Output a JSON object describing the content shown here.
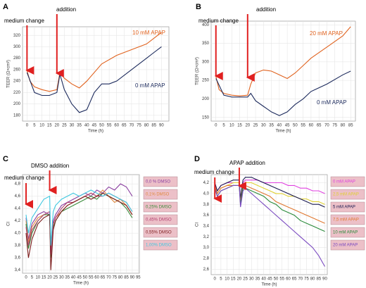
{
  "chart_data": [
    {
      "type": "line",
      "panel": "A",
      "annotations": [
        "medium change",
        "addition"
      ],
      "x_label": "Time (h)",
      "y_label": "TEER (Ω×cm²)",
      "xlim": [
        -3,
        95
      ],
      "ylim": [
        170,
        335
      ],
      "xticks": [
        0,
        5,
        10,
        15,
        20,
        25,
        30,
        35,
        40,
        45,
        50,
        55,
        60,
        65,
        70,
        75,
        80,
        85,
        90
      ],
      "yticks": [
        180,
        200,
        220,
        240,
        260,
        280,
        300,
        320
      ],
      "grid": true,
      "legend": "inline",
      "series": [
        {
          "name": "10 mM APAP",
          "color": "#e0621e",
          "x": [
            0,
            2,
            5,
            10,
            15,
            20,
            22,
            25,
            30,
            35,
            40,
            50,
            60,
            70,
            80,
            90
          ],
          "values": [
            258,
            240,
            230,
            225,
            222,
            225,
            255,
            245,
            235,
            228,
            240,
            270,
            285,
            295,
            305,
            325
          ]
        },
        {
          "name": "0 mM APAP",
          "color": "#1c2a5c",
          "x": [
            0,
            5,
            10,
            15,
            20,
            22,
            25,
            30,
            35,
            40,
            45,
            50,
            55,
            60,
            70,
            80,
            85,
            90
          ],
          "values": [
            255,
            220,
            215,
            215,
            220,
            252,
            225,
            200,
            185,
            190,
            220,
            235,
            235,
            240,
            260,
            280,
            290,
            300
          ]
        }
      ]
    },
    {
      "type": "line",
      "panel": "B",
      "annotations": [
        "medium change",
        "addition"
      ],
      "x_label": "Time (h)",
      "y_label": "TEER (Ω×cm²)",
      "xlim": [
        -3,
        88
      ],
      "ylim": [
        140,
        410
      ],
      "xticks": [
        0,
        5,
        10,
        15,
        20,
        25,
        30,
        35,
        40,
        45,
        50,
        55,
        60,
        65,
        70,
        75,
        80,
        85
      ],
      "yticks": [
        150,
        200,
        250,
        300,
        350,
        400
      ],
      "grid": true,
      "legend": "inline",
      "series": [
        {
          "name": "20 mM APAP",
          "color": "#e0621e",
          "x": [
            0,
            2,
            5,
            10,
            15,
            20,
            22,
            25,
            30,
            35,
            40,
            45,
            50,
            55,
            60,
            70,
            80,
            85
          ],
          "values": [
            260,
            225,
            215,
            210,
            208,
            210,
            240,
            270,
            278,
            275,
            265,
            255,
            270,
            290,
            310,
            340,
            370,
            395
          ]
        },
        {
          "name": "0 mM APAP",
          "color": "#1c2a5c",
          "x": [
            0,
            5,
            10,
            15,
            20,
            22,
            25,
            30,
            35,
            40,
            45,
            50,
            55,
            60,
            70,
            80,
            85
          ],
          "values": [
            255,
            210,
            205,
            205,
            205,
            215,
            195,
            180,
            165,
            155,
            165,
            185,
            200,
            220,
            240,
            265,
            275
          ]
        }
      ]
    },
    {
      "type": "line",
      "panel": "C",
      "annotations": [
        "medium change",
        "DMSO addition"
      ],
      "x_label": "Time (h)",
      "y_label": "CI",
      "xlim": [
        -3,
        96
      ],
      "ylim": [
        3.35,
        4.95
      ],
      "xticks": [
        0,
        5,
        10,
        15,
        20,
        25,
        30,
        35,
        40,
        45,
        50,
        55,
        60,
        65,
        70,
        75,
        80,
        85,
        90,
        95
      ],
      "yticks": [
        {
          "value": 3.4,
          "label": "3,4"
        },
        {
          "value": 3.6,
          "label": "3,6"
        },
        {
          "value": 3.8,
          "label": "3,8"
        },
        {
          "value": 4.0,
          "label": "4,0"
        },
        {
          "value": 4.2,
          "label": "4,2"
        },
        {
          "value": 4.4,
          "label": "4,4"
        },
        {
          "value": 4.6,
          "label": "4,6"
        },
        {
          "value": 4.8,
          "label": "4,8"
        }
      ],
      "grid": true,
      "legend": "right",
      "series": [
        {
          "name": "0,0 % DMSO",
          "color": "#8a3fa0",
          "x": [
            0,
            2,
            5,
            10,
            15,
            20,
            21,
            23,
            25,
            30,
            35,
            40,
            45,
            50,
            55,
            60,
            65,
            70,
            75,
            80,
            85,
            90
          ],
          "values": [
            4.25,
            3.9,
            4.15,
            4.3,
            4.35,
            4.3,
            3.6,
            4.2,
            4.3,
            4.45,
            4.5,
            4.55,
            4.6,
            4.65,
            4.6,
            4.7,
            4.65,
            4.75,
            4.7,
            4.8,
            4.75,
            4.6
          ]
        },
        {
          "name": "0,1% DMSO",
          "color": "#e08a40",
          "x": [
            0,
            2,
            5,
            10,
            15,
            20,
            21,
            23,
            25,
            30,
            35,
            40,
            45,
            50,
            55,
            60,
            65,
            70,
            75,
            80,
            85,
            90
          ],
          "values": [
            4.2,
            3.85,
            4.1,
            4.25,
            4.3,
            4.3,
            3.7,
            4.15,
            4.25,
            4.35,
            4.45,
            4.5,
            4.55,
            4.6,
            4.65,
            4.6,
            4.7,
            4.6,
            4.5,
            4.55,
            4.45,
            4.3
          ]
        },
        {
          "name": "0,25% DMSO",
          "color": "#3a8a3a",
          "x": [
            0,
            2,
            5,
            10,
            15,
            20,
            21,
            23,
            25,
            30,
            35,
            40,
            45,
            50,
            55,
            60,
            65,
            70,
            75,
            80,
            85,
            90
          ],
          "values": [
            4.15,
            3.75,
            4.0,
            4.2,
            4.3,
            4.3,
            3.6,
            4.1,
            4.2,
            4.35,
            4.4,
            4.45,
            4.5,
            4.55,
            4.6,
            4.55,
            4.65,
            4.6,
            4.55,
            4.5,
            4.4,
            4.25
          ]
        },
        {
          "name": "0,45% DMSO",
          "color": "#b04070",
          "x": [
            0,
            2,
            5,
            10,
            15,
            20,
            21,
            23,
            25,
            30,
            35,
            40,
            45,
            50,
            55,
            60,
            65,
            70,
            75,
            80,
            85,
            90
          ],
          "values": [
            4.1,
            3.8,
            4.05,
            4.2,
            4.3,
            4.35,
            3.65,
            4.15,
            4.25,
            4.4,
            4.5,
            4.5,
            4.55,
            4.6,
            4.65,
            4.6,
            4.6,
            4.65,
            4.6,
            4.55,
            4.5,
            4.35
          ]
        },
        {
          "name": "0,55% DMSO",
          "color": "#7a1a1a",
          "x": [
            0,
            2,
            5,
            10,
            15,
            20,
            21,
            23,
            25,
            30,
            35,
            40,
            45,
            50,
            55,
            60,
            65,
            70,
            75,
            80,
            85,
            90
          ],
          "values": [
            4.0,
            3.6,
            3.9,
            4.15,
            4.25,
            4.3,
            3.4,
            4.05,
            4.2,
            4.35,
            4.45,
            4.5,
            4.55,
            4.6,
            4.55,
            4.6,
            4.65,
            4.6,
            4.55,
            4.5,
            4.45,
            4.3
          ]
        },
        {
          "name": "1,00% DMSO",
          "color": "#40c8e0",
          "x": [
            0,
            2,
            5,
            10,
            15,
            20,
            21,
            23,
            25,
            30,
            35,
            40,
            45,
            50,
            55,
            60,
            65,
            70,
            75,
            80,
            85,
            90
          ],
          "values": [
            4.3,
            4.0,
            4.25,
            4.4,
            4.55,
            4.6,
            3.8,
            4.35,
            4.45,
            4.55,
            4.6,
            4.65,
            4.6,
            4.65,
            4.7,
            4.65,
            4.6,
            4.65,
            4.6,
            4.55,
            4.5,
            4.35
          ]
        }
      ]
    },
    {
      "type": "line",
      "panel": "D",
      "annotations": [
        "medium change",
        "APAP addition"
      ],
      "x_label": "Time (h)",
      "y_label": "CI",
      "xlim": [
        -3,
        92
      ],
      "ylim": [
        2.5,
        4.35
      ],
      "xticks": [
        0,
        5,
        10,
        15,
        20,
        25,
        30,
        35,
        40,
        45,
        50,
        55,
        60,
        65,
        70,
        75,
        80,
        85,
        90
      ],
      "yticks": [
        {
          "value": 2.6,
          "label": "2,6"
        },
        {
          "value": 2.8,
          "label": "2,8"
        },
        {
          "value": 3.0,
          "label": "3,0"
        },
        {
          "value": 3.2,
          "label": "3,2"
        },
        {
          "value": 3.4,
          "label": "3,4"
        },
        {
          "value": 3.6,
          "label": "3,6"
        },
        {
          "value": 3.8,
          "label": "3,8"
        },
        {
          "value": 4.0,
          "label": "4,0"
        },
        {
          "value": 4.2,
          "label": "4,2"
        }
      ],
      "grid": true,
      "legend": "right",
      "series": [
        {
          "name": "0 mM APAP",
          "color": "#e040e0",
          "x": [
            0,
            2,
            5,
            10,
            15,
            20,
            21,
            23,
            25,
            30,
            35,
            40,
            45,
            50,
            55,
            60,
            65,
            70,
            75,
            80,
            85,
            90
          ],
          "values": [
            4.2,
            4.05,
            4.15,
            4.2,
            4.2,
            4.2,
            3.9,
            4.2,
            4.25,
            4.25,
            4.25,
            4.2,
            4.2,
            4.2,
            4.2,
            4.15,
            4.15,
            4.1,
            4.1,
            4.05,
            4.05,
            4.0
          ]
        },
        {
          "name": "2,5 mM APAP",
          "color": "#e0d030",
          "x": [
            0,
            2,
            5,
            10,
            15,
            20,
            21,
            23,
            25,
            30,
            35,
            40,
            45,
            50,
            55,
            60,
            65,
            70,
            75,
            80,
            85,
            90
          ],
          "values": [
            4.15,
            4.0,
            4.1,
            4.15,
            4.2,
            4.2,
            3.85,
            4.15,
            4.2,
            4.2,
            4.15,
            4.1,
            4.05,
            4.0,
            4.0,
            3.95,
            3.95,
            3.9,
            3.9,
            3.85,
            3.85,
            3.8
          ]
        },
        {
          "name": "5 mM APAP",
          "color": "#1a1a50",
          "x": [
            0,
            2,
            5,
            10,
            15,
            20,
            21,
            23,
            25,
            30,
            35,
            40,
            45,
            50,
            55,
            60,
            65,
            70,
            75,
            80,
            85,
            90
          ],
          "values": [
            4.2,
            4.05,
            4.15,
            4.2,
            4.25,
            4.25,
            3.9,
            4.25,
            4.3,
            4.3,
            4.25,
            4.2,
            4.15,
            4.1,
            4.05,
            4.0,
            3.95,
            3.9,
            3.85,
            3.8,
            3.8,
            3.75
          ]
        },
        {
          "name": "7,5 mM APAP",
          "color": "#e07830",
          "x": [
            0,
            2,
            5,
            10,
            15,
            20,
            21,
            23,
            25,
            30,
            35,
            40,
            45,
            50,
            55,
            60,
            65,
            70,
            75,
            80,
            85,
            90
          ],
          "values": [
            4.15,
            4.0,
            4.1,
            4.15,
            4.15,
            4.15,
            3.85,
            4.1,
            4.15,
            4.1,
            4.05,
            4.0,
            3.95,
            3.85,
            3.8,
            3.75,
            3.7,
            3.65,
            3.6,
            3.55,
            3.5,
            3.45
          ]
        },
        {
          "name": "10 mM APAP",
          "color": "#2a8a3a",
          "x": [
            0,
            2,
            5,
            10,
            15,
            20,
            21,
            23,
            25,
            30,
            35,
            40,
            45,
            50,
            55,
            60,
            65,
            70,
            75,
            80,
            85,
            90
          ],
          "values": [
            4.1,
            3.95,
            4.05,
            4.1,
            4.15,
            4.15,
            3.8,
            4.1,
            4.1,
            4.05,
            4.0,
            3.95,
            3.85,
            3.8,
            3.7,
            3.65,
            3.6,
            3.5,
            3.45,
            3.4,
            3.35,
            3.3
          ]
        },
        {
          "name": "20 mM APAP",
          "color": "#7a4ac0",
          "x": [
            0,
            2,
            5,
            10,
            15,
            20,
            21,
            23,
            25,
            30,
            35,
            40,
            45,
            50,
            55,
            60,
            65,
            70,
            75,
            80,
            85,
            90
          ],
          "values": [
            4.1,
            3.95,
            4.05,
            4.1,
            4.15,
            4.15,
            3.75,
            4.05,
            4.1,
            4.0,
            3.9,
            3.8,
            3.7,
            3.6,
            3.5,
            3.4,
            3.3,
            3.2,
            3.1,
            3.0,
            2.85,
            2.65
          ]
        }
      ]
    }
  ]
}
